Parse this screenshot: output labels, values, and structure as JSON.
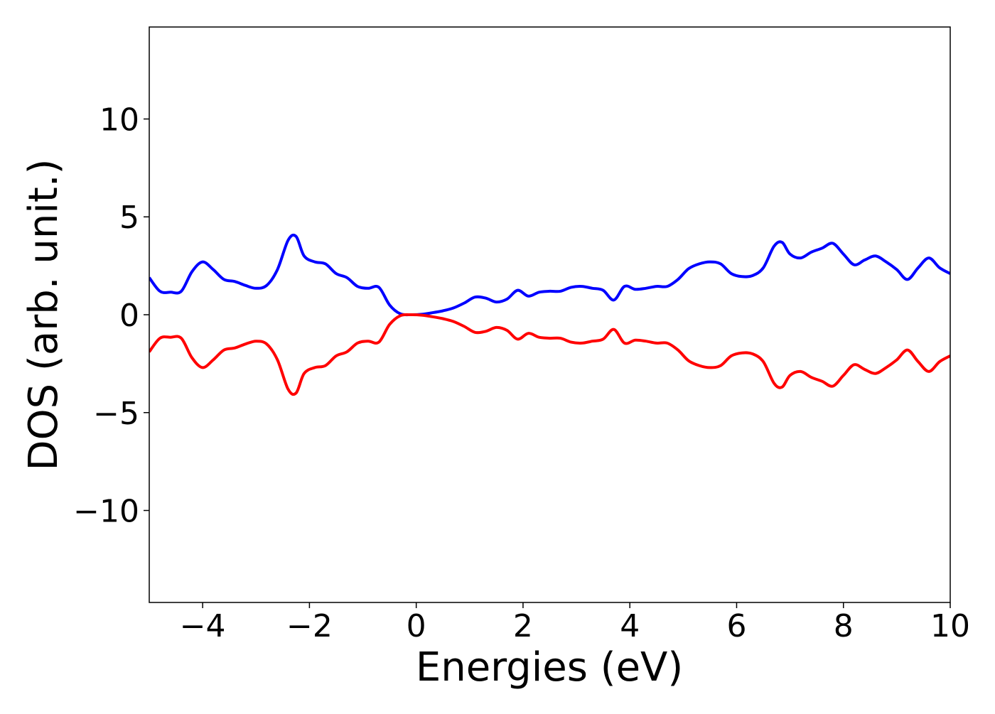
{
  "chart_data": {
    "type": "line",
    "xlabel": "Energies (eV)",
    "ylabel": "DOS (arb. unit.)",
    "xlim": [
      -5,
      10
    ],
    "ylim": [
      -14.7,
      14.7
    ],
    "grid": false,
    "x_ticks": [
      -4,
      -2,
      0,
      2,
      4,
      6,
      8,
      10
    ],
    "x_tick_labels": [
      "−4",
      "−2",
      "0",
      "2",
      "4",
      "6",
      "8",
      "10"
    ],
    "y_ticks": [
      -10,
      -5,
      0,
      5,
      10
    ],
    "y_tick_labels": [
      "−10",
      "−5",
      "0",
      "5",
      "10"
    ],
    "series": [
      {
        "color": "#0000ff",
        "x": [
          -5.0,
          -4.8,
          -4.6,
          -4.4,
          -4.2,
          -4.0,
          -3.8,
          -3.6,
          -3.4,
          -3.2,
          -3.0,
          -2.8,
          -2.6,
          -2.4,
          -2.25,
          -2.1,
          -1.9,
          -1.7,
          -1.5,
          -1.3,
          -1.1,
          -0.9,
          -0.7,
          -0.5,
          -0.3,
          -0.1,
          0.1,
          0.3,
          0.5,
          0.7,
          0.9,
          1.1,
          1.3,
          1.5,
          1.7,
          1.9,
          2.1,
          2.3,
          2.5,
          2.7,
          2.9,
          3.1,
          3.3,
          3.5,
          3.7,
          3.9,
          4.1,
          4.3,
          4.5,
          4.7,
          4.9,
          5.1,
          5.3,
          5.5,
          5.7,
          5.9,
          6.1,
          6.3,
          6.5,
          6.7,
          6.85,
          7.0,
          7.2,
          7.4,
          7.6,
          7.8,
          8.0,
          8.2,
          8.4,
          8.6,
          8.8,
          9.0,
          9.2,
          9.4,
          9.6,
          9.8,
          10.0
        ],
        "y": [
          1.9,
          1.2,
          1.15,
          1.2,
          2.2,
          2.7,
          2.3,
          1.8,
          1.7,
          1.5,
          1.35,
          1.5,
          2.3,
          3.8,
          4.0,
          3.0,
          2.7,
          2.6,
          2.1,
          1.9,
          1.45,
          1.35,
          1.4,
          0.5,
          0.05,
          0.0,
          0.02,
          0.1,
          0.2,
          0.35,
          0.6,
          0.9,
          0.85,
          0.65,
          0.8,
          1.25,
          0.95,
          1.15,
          1.2,
          1.2,
          1.4,
          1.45,
          1.35,
          1.25,
          0.75,
          1.45,
          1.3,
          1.35,
          1.45,
          1.45,
          1.8,
          2.35,
          2.6,
          2.7,
          2.6,
          2.1,
          1.95,
          2.0,
          2.4,
          3.5,
          3.7,
          3.1,
          2.9,
          3.2,
          3.4,
          3.65,
          3.1,
          2.55,
          2.8,
          3.0,
          2.7,
          2.3,
          1.8,
          2.4,
          2.9,
          2.4,
          2.1
        ]
      },
      {
        "color": "#ff0000",
        "x": [
          -5.0,
          -4.8,
          -4.6,
          -4.4,
          -4.2,
          -4.0,
          -3.8,
          -3.6,
          -3.4,
          -3.2,
          -3.0,
          -2.8,
          -2.6,
          -2.4,
          -2.25,
          -2.1,
          -1.9,
          -1.7,
          -1.5,
          -1.3,
          -1.1,
          -0.9,
          -0.7,
          -0.5,
          -0.3,
          -0.1,
          0.1,
          0.3,
          0.5,
          0.7,
          0.9,
          1.1,
          1.3,
          1.5,
          1.7,
          1.9,
          2.1,
          2.3,
          2.5,
          2.7,
          2.9,
          3.1,
          3.3,
          3.5,
          3.7,
          3.9,
          4.1,
          4.3,
          4.5,
          4.7,
          4.9,
          5.1,
          5.3,
          5.5,
          5.7,
          5.9,
          6.1,
          6.3,
          6.5,
          6.7,
          6.85,
          7.0,
          7.2,
          7.4,
          7.6,
          7.8,
          8.0,
          8.2,
          8.4,
          8.6,
          8.8,
          9.0,
          9.2,
          9.4,
          9.6,
          9.8,
          10.0
        ],
        "y": [
          -1.9,
          -1.2,
          -1.15,
          -1.2,
          -2.2,
          -2.7,
          -2.3,
          -1.8,
          -1.7,
          -1.5,
          -1.35,
          -1.5,
          -2.3,
          -3.8,
          -4.0,
          -3.0,
          -2.7,
          -2.6,
          -2.1,
          -1.9,
          -1.45,
          -1.35,
          -1.4,
          -0.5,
          -0.05,
          0.0,
          -0.02,
          -0.1,
          -0.2,
          -0.35,
          -0.6,
          -0.9,
          -0.85,
          -0.65,
          -0.8,
          -1.25,
          -0.95,
          -1.15,
          -1.2,
          -1.2,
          -1.4,
          -1.45,
          -1.35,
          -1.25,
          -0.75,
          -1.45,
          -1.3,
          -1.35,
          -1.45,
          -1.45,
          -1.8,
          -2.35,
          -2.6,
          -2.7,
          -2.6,
          -2.1,
          -1.95,
          -2.0,
          -2.4,
          -3.5,
          -3.7,
          -3.1,
          -2.9,
          -3.2,
          -3.4,
          -3.65,
          -3.1,
          -2.55,
          -2.8,
          -3.0,
          -2.7,
          -2.3,
          -1.8,
          -2.4,
          -2.9,
          -2.4,
          -2.1
        ]
      }
    ]
  }
}
